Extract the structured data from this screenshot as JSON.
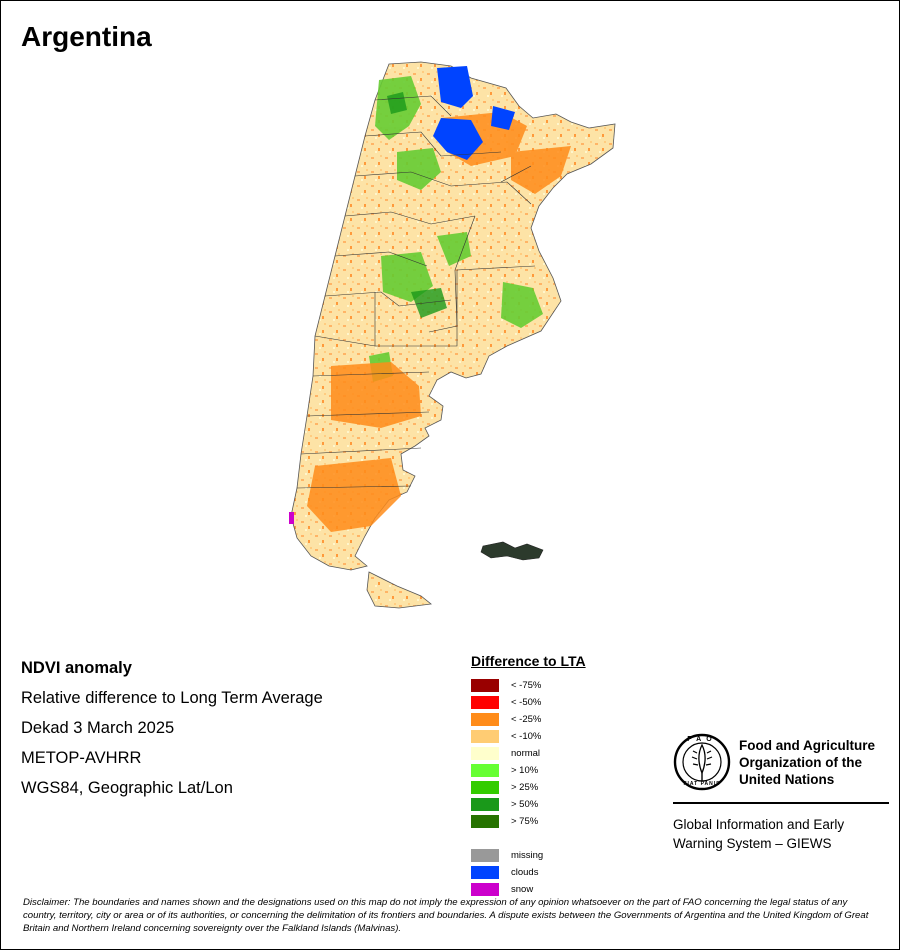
{
  "title": "Argentina",
  "info": {
    "product": "NDVI anomaly",
    "description": "Relative difference to Long Term Average",
    "period": "Dekad 3 March 2025",
    "sensor": "METOP-AVHRR",
    "projection": "WGS84, Geographic Lat/Lon"
  },
  "legend": {
    "title": "Difference to LTA",
    "classes": [
      {
        "label": "< -75%",
        "color": "#990000"
      },
      {
        "label": "< -50%",
        "color": "#ff0000"
      },
      {
        "label": "< -25%",
        "color": "#ff8c1a"
      },
      {
        "label": "< -10%",
        "color": "#ffcc73"
      },
      {
        "label": "normal",
        "color": "#ffffcc"
      },
      {
        "label": "> 10%",
        "color": "#66ff33"
      },
      {
        "label": "> 25%",
        "color": "#33cc00"
      },
      {
        "label": "> 50%",
        "color": "#1a991a"
      },
      {
        "label": "> 75%",
        "color": "#267300"
      }
    ],
    "extra_classes": [
      {
        "label": "missing",
        "color": "#999999"
      },
      {
        "label": "clouds",
        "color": "#0044ff"
      },
      {
        "label": "snow",
        "color": "#cc00cc"
      }
    ]
  },
  "fao": {
    "name_line1": "Food and Agriculture",
    "name_line2": "Organization of the",
    "name_line3": "United Nations",
    "logo_text": "FAO",
    "logo_motto": "FIAT PANIS",
    "giews_line1": "Global Information and Early",
    "giews_line2": "Warning System – GIEWS"
  },
  "disclaimer": "Disclaimer: The boundaries and names shown and the designations used on this map do not imply the expression of any opinion whatsoever on the part of FAO concerning the legal status of any country, territory, city or area or of its authorities, or concerning the delimitation of its frontiers and boundaries. A dispute exists between the Governments of Argentina and the United Kingdom of Great Britain and Northern Ireland concerning sovereignty over the Falkland Islands (Malvinas)."
}
